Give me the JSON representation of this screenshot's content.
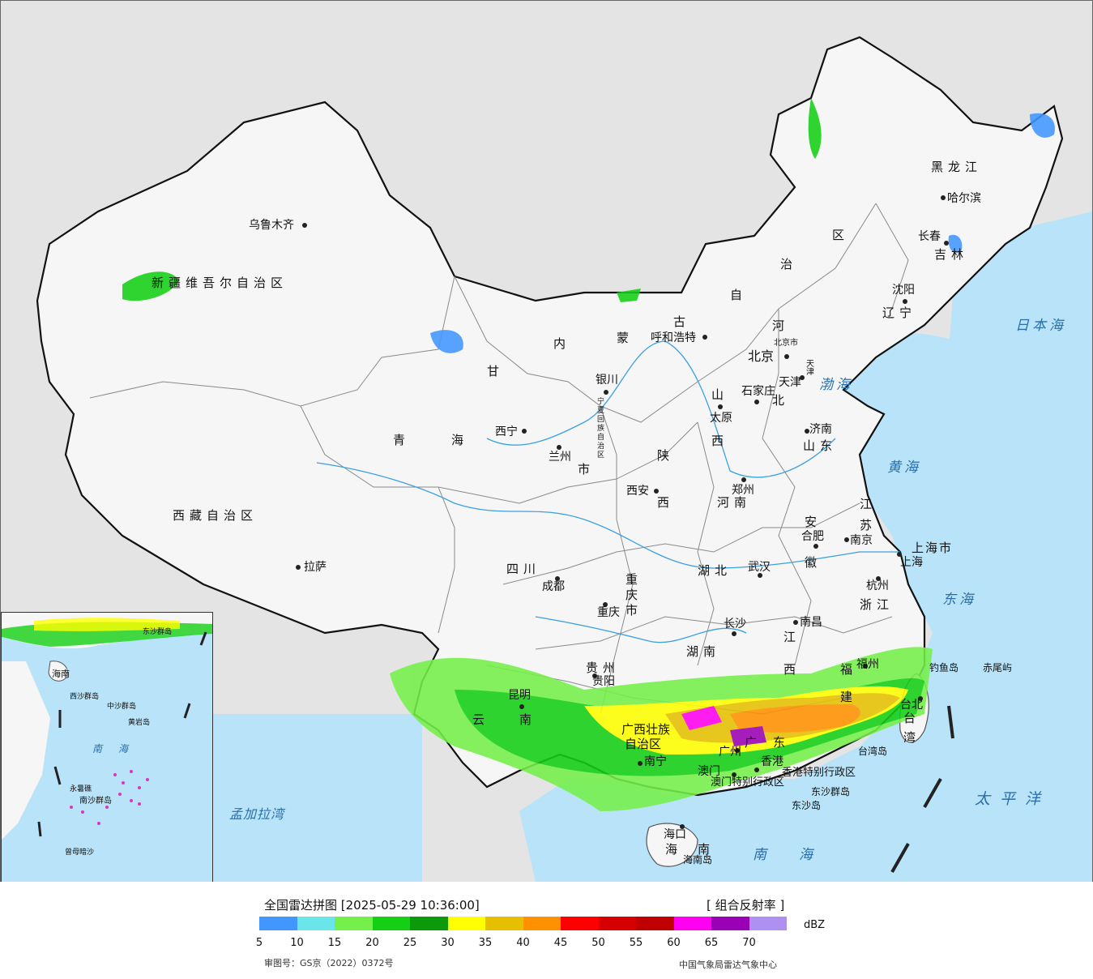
{
  "map": {
    "regions": {
      "xinjiang": "新疆维吾尔自治区",
      "xizang": "西藏自治区",
      "qinghai_1": "青",
      "qinghai_2": "海",
      "gansu": "甘",
      "neimenggu_1": "内",
      "neimenggu_2": "蒙",
      "neimenggu_3": "古",
      "neimenggu_4": "自",
      "neimenggu_5": "治",
      "neimenggu_6": "区",
      "heilongjiang": "黑龙江",
      "jilin": "吉林",
      "liaoning": "辽宁",
      "hebei_1": "河",
      "hebei_2": "北",
      "shanxi_1": "山",
      "shanxi_2": "西",
      "shandong": "山东",
      "henan": "河南",
      "shaanxi_1": "陕",
      "shaanxi_2": "西",
      "ningxia": "宁夏回族自治区",
      "sichuan": "四川",
      "chongqing": "重庆市",
      "hubei": "湖北",
      "hunan": "湖南",
      "anhui_1": "安",
      "anhui_2": "徽",
      "jiangsu_1": "江",
      "jiangsu_2": "苏",
      "zhejiang": "浙江",
      "jiangxi_1": "江",
      "jiangxi_2": "西",
      "fujian_1": "福",
      "fujian_2": "建",
      "shanghai": "上海市",
      "guizhou": "贵州",
      "yunnan_1": "云",
      "yunnan_2": "南",
      "guangxi_1": "广西壮族",
      "guangxi_2": "自治区",
      "guangdong": "广东",
      "hainan_1": "海",
      "hainan_2": "南",
      "taiwan_1": "台",
      "taiwan_2": "湾",
      "beijing": "北京市",
      "tianjin": "天津",
      "hongkong": "香港特别行政区",
      "macau": "澳门特别行政区",
      "gansu_sub": "市"
    },
    "cities": {
      "urumqi": "乌鲁木齐",
      "lhasa": "拉萨",
      "xining": "西宁",
      "lanzhou": "兰州",
      "yinchuan": "银川",
      "hohhot": "呼和浩特",
      "beijing": "北京",
      "tianjin": "天津",
      "shijiazhuang": "石家庄",
      "taiyuan": "太原",
      "jinan": "济南",
      "zhengzhou": "郑州",
      "xian": "西安",
      "chengdu": "成都",
      "chongqing": "重庆",
      "wuhan": "武汉",
      "hefei": "合肥",
      "nanjing": "南京",
      "shanghai": "上海",
      "hangzhou": "杭州",
      "changsha": "长沙",
      "nanchang": "南昌",
      "fuzhou": "福州",
      "taibei": "台北",
      "guiyang": "贵阳",
      "kunming": "昆明",
      "nanning": "南宁",
      "guangzhou": "广州",
      "hongkong": "香港",
      "macau": "澳门",
      "haikou": "海口",
      "harbin": "哈尔滨",
      "changchun": "长春",
      "shenyang": "沈阳",
      "hainandao": "海南岛",
      "taiwandao": "台湾岛",
      "dongsha": "东沙群岛",
      "dongshadao": "东沙岛",
      "diaoyudao": "钓鱼岛",
      "chiweiyu": "赤尾屿"
    },
    "seas": {
      "japan_sea": "日本海",
      "bohai": "渤海",
      "yellow_sea": "黄海",
      "east_sea": "东海",
      "pacific": "太平洋",
      "south_sea": "南海",
      "bengal": "孟加拉湾"
    },
    "inset": {
      "south_sea": "南海",
      "zhongsha": "中沙群岛",
      "nansha": "南沙群岛",
      "xisha": "西沙群岛",
      "huangyan": "黄岩岛",
      "dongsha": "东沙群岛",
      "yongshu": "永暑礁",
      "zengmu": "曾母暗沙",
      "hainan": "海南"
    }
  },
  "legend": {
    "title": "全国雷达拼图 [2025-05-29 10:36:00]",
    "product": "[ 组合反射率 ]",
    "unit": "dBZ",
    "ticks": [
      "5",
      "10",
      "15",
      "20",
      "25",
      "30",
      "35",
      "40",
      "45",
      "50",
      "55",
      "60",
      "65",
      "70"
    ],
    "colors": [
      "#4196ff",
      "#6ae6ea",
      "#75f04a",
      "#14cf14",
      "#0a9a0a",
      "#ffff00",
      "#e6c000",
      "#ff9000",
      "#ff0000",
      "#d60000",
      "#c00000",
      "#ff00f0",
      "#9a00b4",
      "#ad90f0"
    ],
    "review_no": "审图号：GS京（2022）0372号",
    "agency": "中国气象局雷达气象中心"
  }
}
